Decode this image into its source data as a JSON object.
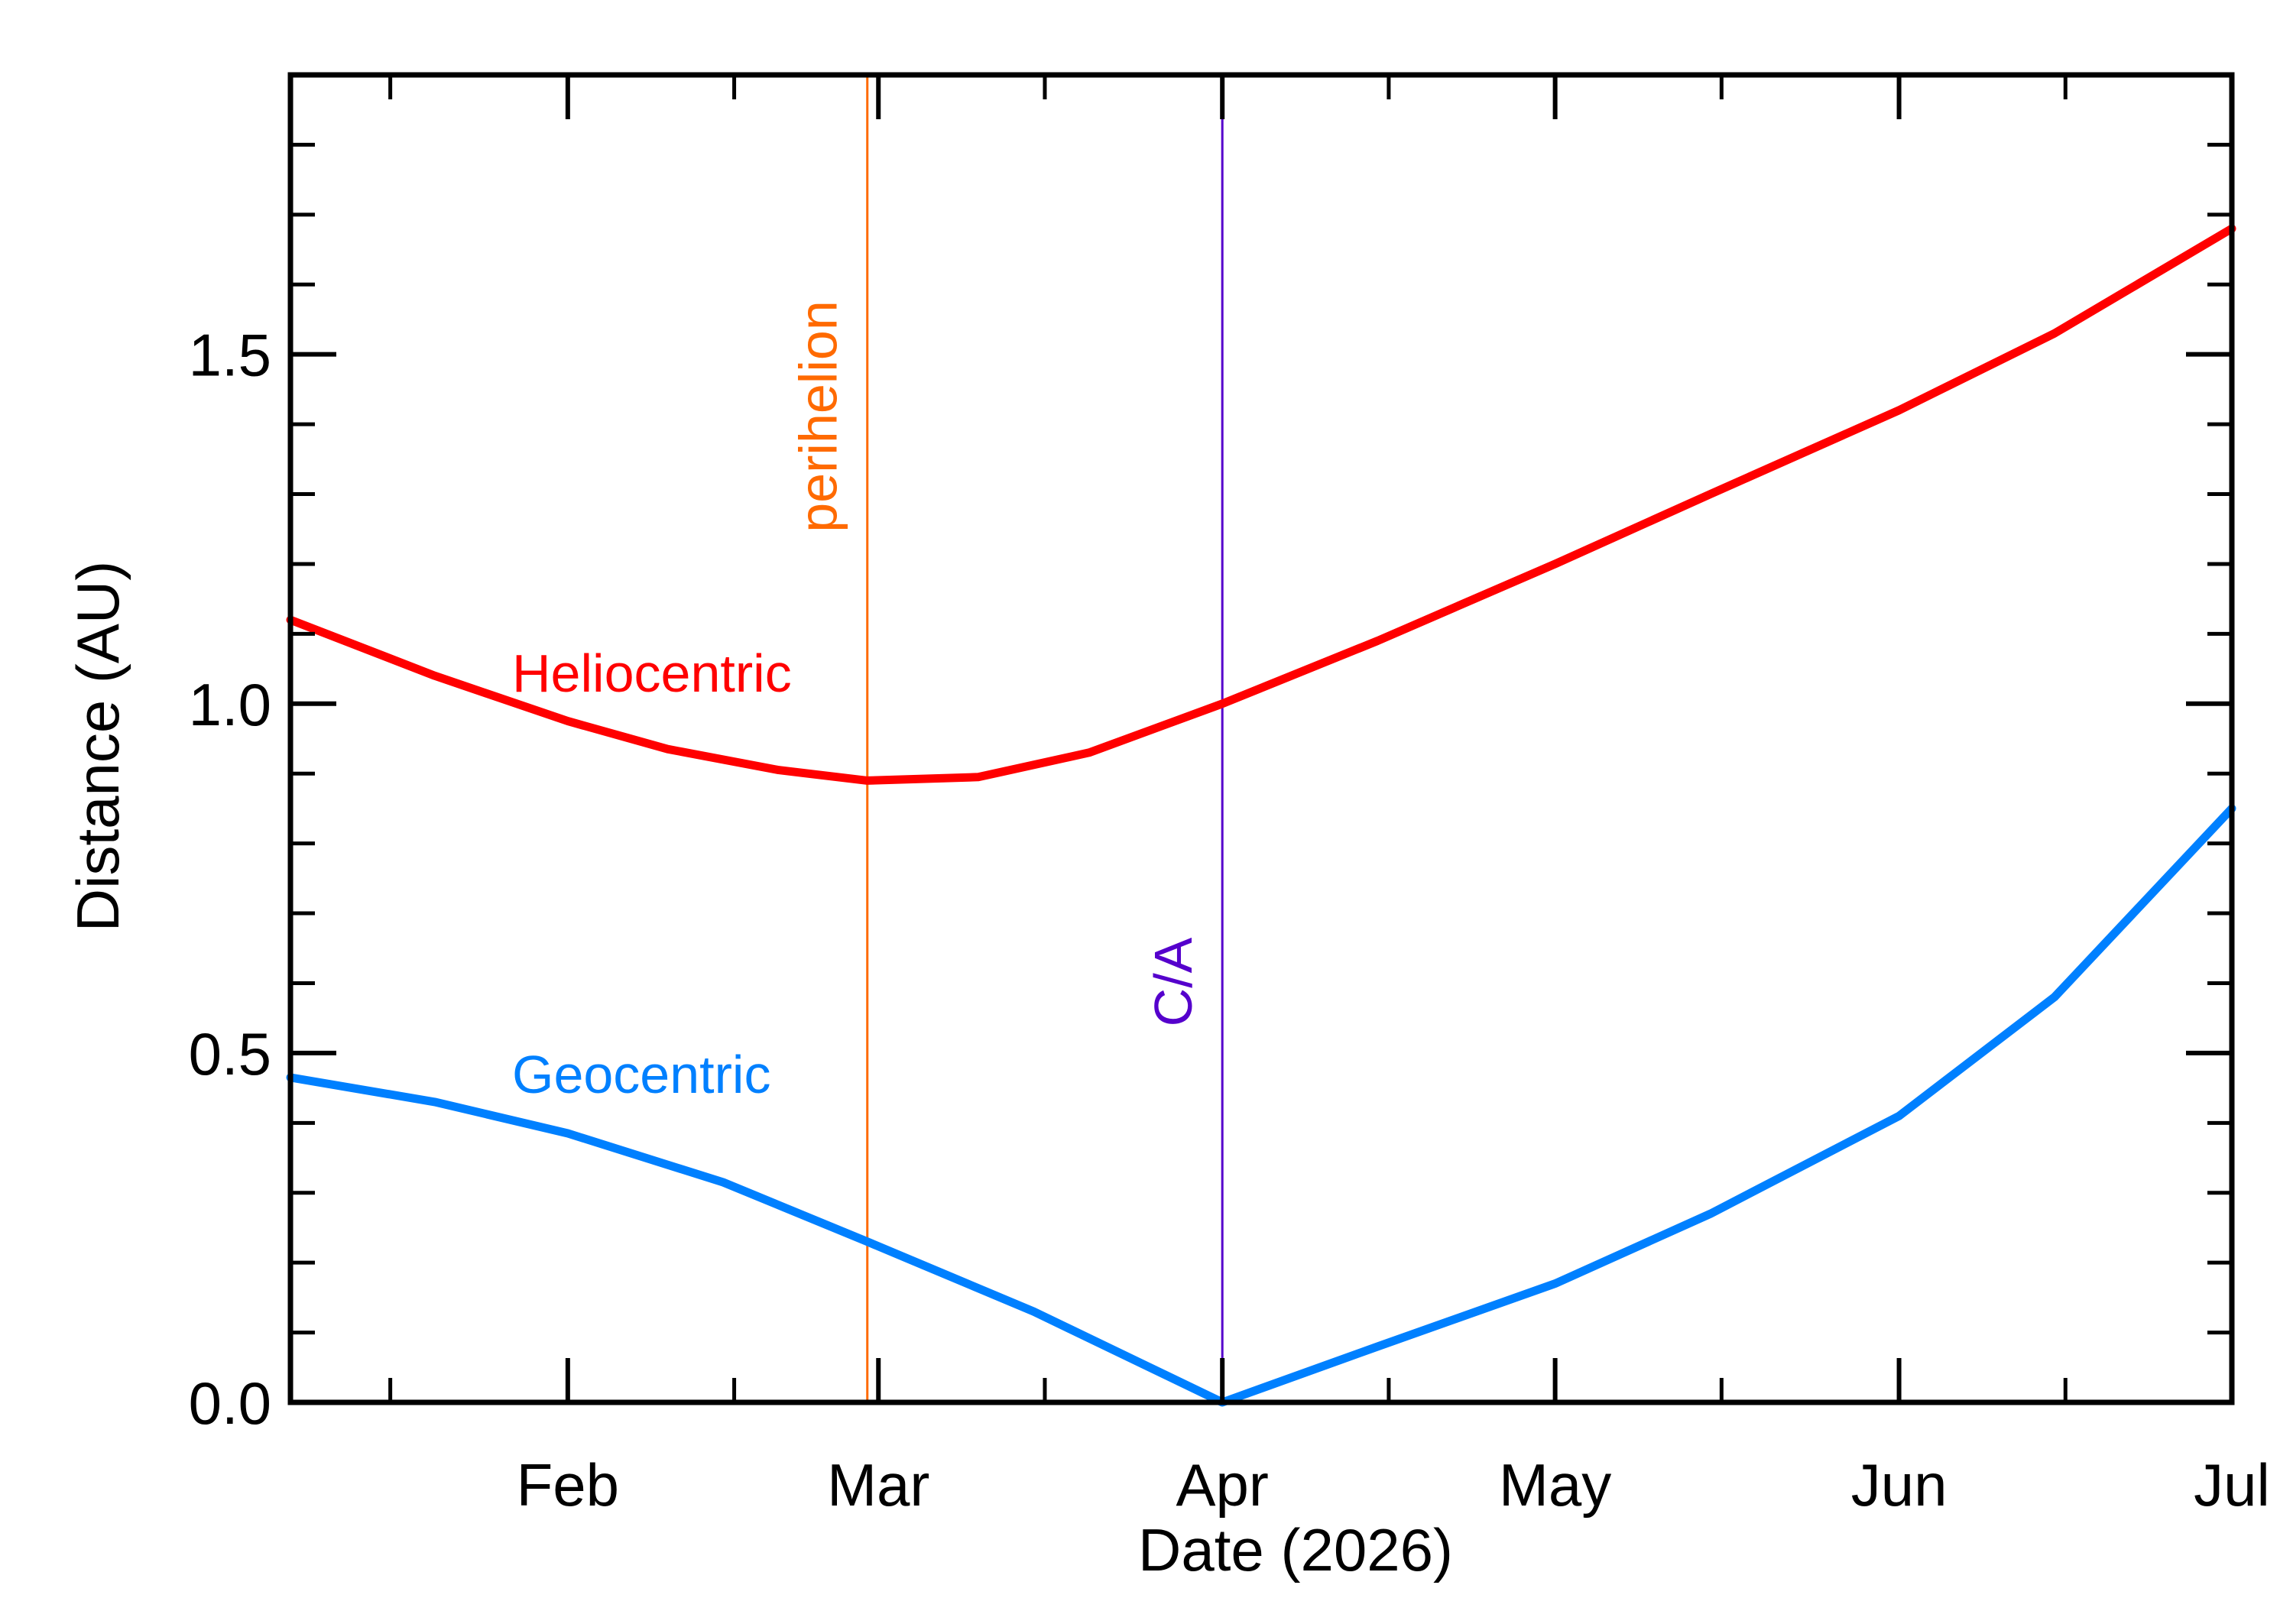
{
  "chart_data": {
    "type": "line",
    "title": "",
    "xlabel": "Date (2026)",
    "ylabel": "Distance (AU)",
    "xlim": [
      "2026-01-07",
      "2026-07-01"
    ],
    "ylim": [
      0.0,
      1.9
    ],
    "x_ticks": [
      {
        "label": "Feb",
        "date": "2026-02-01"
      },
      {
        "label": "Mar",
        "date": "2026-03-01"
      },
      {
        "label": "Apr",
        "date": "2026-04-01"
      },
      {
        "label": "May",
        "date": "2026-05-01"
      },
      {
        "label": "Jun",
        "date": "2026-06-01"
      },
      {
        "label": "Jul",
        "date": "2026-07-01"
      }
    ],
    "y_ticks": [
      "0.0",
      "0.5",
      "1.0",
      "1.5"
    ],
    "y_tick_values": [
      0.0,
      0.5,
      1.0,
      1.5
    ],
    "y_minor_step": 0.1,
    "grid": false,
    "series": [
      {
        "name": "Heliocentric",
        "color": "#ff0000",
        "x": [
          "2026-01-07",
          "2026-01-20",
          "2026-02-01",
          "2026-02-10",
          "2026-02-20",
          "2026-02-28",
          "2026-03-10",
          "2026-03-20",
          "2026-04-01",
          "2026-04-15",
          "2026-05-01",
          "2026-05-15",
          "2026-06-01",
          "2026-06-15",
          "2026-07-01"
        ],
        "y": [
          1.12,
          1.04,
          0.975,
          0.935,
          0.905,
          0.89,
          0.895,
          0.93,
          1.0,
          1.09,
          1.2,
          1.3,
          1.42,
          1.53,
          1.68
        ]
      },
      {
        "name": "Geocentric",
        "color": "#0080ff",
        "x": [
          "2026-01-07",
          "2026-01-20",
          "2026-02-01",
          "2026-02-15",
          "2026-02-28",
          "2026-03-15",
          "2026-04-01",
          "2026-04-15",
          "2026-05-01",
          "2026-05-15",
          "2026-06-01",
          "2026-06-15",
          "2026-07-01"
        ],
        "y": [
          0.465,
          0.43,
          0.385,
          0.315,
          0.23,
          0.13,
          0.0,
          0.08,
          0.17,
          0.27,
          0.41,
          0.58,
          0.85
        ]
      }
    ],
    "vertical_lines": [
      {
        "label": "perihelion",
        "date": "2026-02-28",
        "color": "#ff6a00"
      },
      {
        "label": "C/A",
        "date": "2026-04-01",
        "color": "#5500cc"
      }
    ]
  }
}
